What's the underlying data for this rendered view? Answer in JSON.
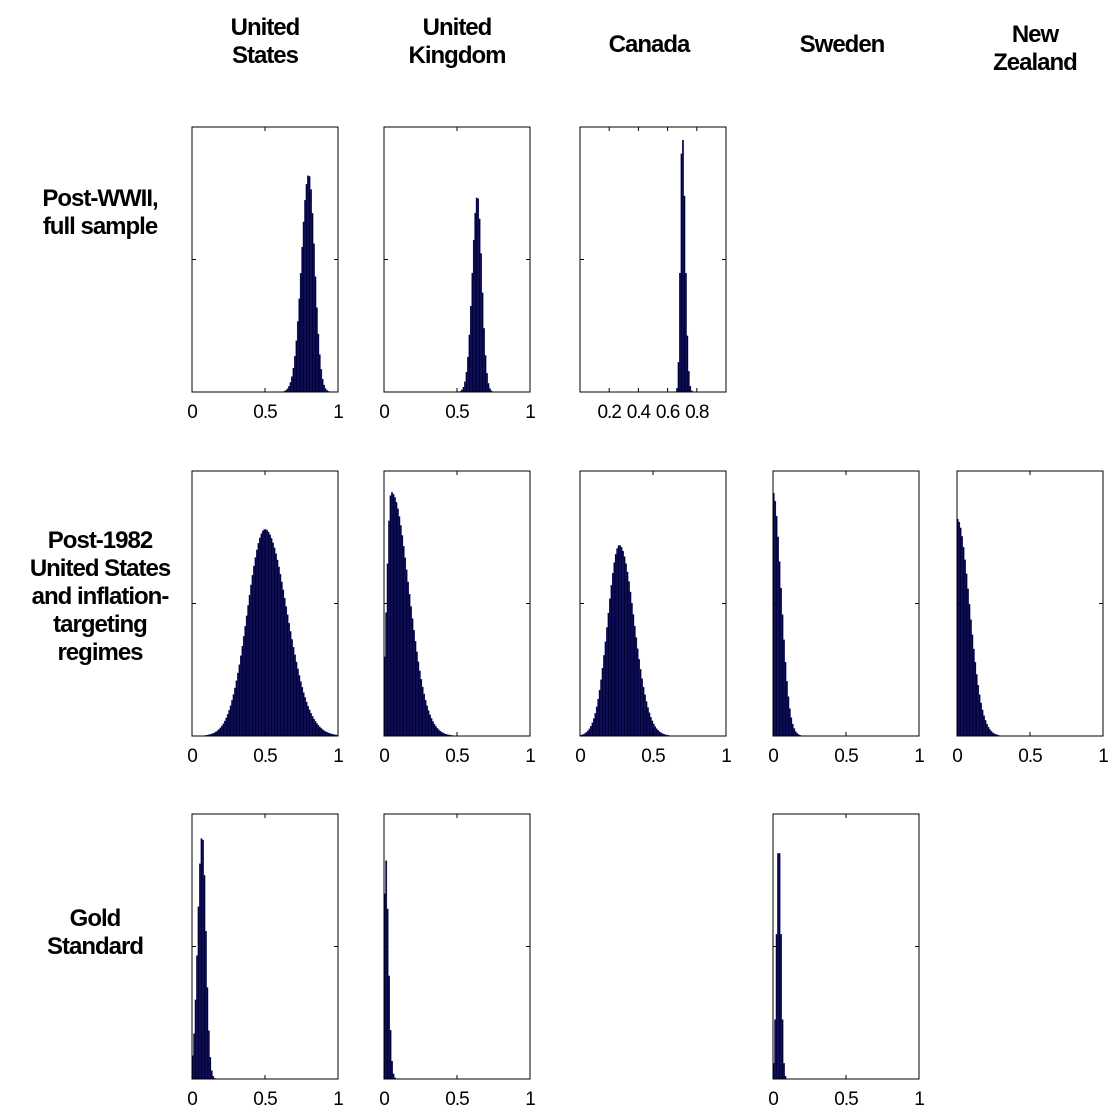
{
  "columns": [
    {
      "id": "us",
      "lines": [
        "United",
        "States"
      ]
    },
    {
      "id": "uk",
      "lines": [
        "United",
        "Kingdom"
      ]
    },
    {
      "id": "ca",
      "lines": [
        "Canada"
      ]
    },
    {
      "id": "se",
      "lines": [
        "Sweden"
      ]
    },
    {
      "id": "nz",
      "lines": [
        "New",
        "Zealand"
      ]
    }
  ],
  "rows": [
    {
      "id": "postwwii",
      "lines": [
        "Post-WWII,",
        "full sample"
      ]
    },
    {
      "id": "post1982",
      "lines": [
        "Post-1982",
        "United States",
        "and inflation-",
        "targeting",
        "regimes"
      ]
    },
    {
      "id": "gold",
      "lines": [
        "Gold",
        "Standard"
      ]
    }
  ],
  "colors": {
    "bar_fill": "#000033",
    "bar_edge": "#1a1a80",
    "axis": "#000000"
  },
  "chart_data": [
    {
      "type": "histogram",
      "row": "postwwii",
      "column": "us",
      "xlim": [
        0,
        1
      ],
      "xticks": [
        0,
        0.5,
        1
      ],
      "xtick_labels": [
        "0",
        "0.5",
        "1"
      ],
      "peak": 0.8,
      "spread_left": 0.05,
      "spread_right": 0.04,
      "peak_height": 0.82
    },
    {
      "type": "histogram",
      "row": "postwwii",
      "column": "uk",
      "xlim": [
        0,
        1
      ],
      "xticks": [
        0,
        0.5,
        1
      ],
      "xtick_labels": [
        "0",
        "0.5",
        "1"
      ],
      "peak": 0.64,
      "spread_left": 0.035,
      "spread_right": 0.03,
      "peak_height": 0.74
    },
    {
      "type": "histogram",
      "row": "postwwii",
      "column": "ca",
      "xlim": [
        0,
        1
      ],
      "xticks": [
        0.2,
        0.4,
        0.6,
        0.8
      ],
      "xtick_labels": [
        "0.2",
        "0.4",
        "0.6",
        "0.8"
      ],
      "peak": 0.7,
      "spread_left": 0.012,
      "spread_right": 0.02,
      "peak_height": 0.98
    },
    {
      "type": "histogram",
      "row": "post1982",
      "column": "us",
      "xlim": [
        0,
        1
      ],
      "xticks": [
        0,
        0.5,
        1
      ],
      "xtick_labels": [
        "0",
        "0.5",
        "1"
      ],
      "peak": 0.5,
      "spread_left": 0.12,
      "spread_right": 0.15,
      "peak_height": 0.78
    },
    {
      "type": "histogram",
      "row": "post1982",
      "column": "uk",
      "xlim": [
        0,
        1
      ],
      "xticks": [
        0,
        0.5,
        1
      ],
      "xtick_labels": [
        "0",
        "0.5",
        "1"
      ],
      "peak": 0.05,
      "spread_left": 0.03,
      "spread_right": 0.12,
      "peak_height": 0.92
    },
    {
      "type": "histogram",
      "row": "post1982",
      "column": "ca",
      "xlim": [
        0,
        1
      ],
      "xticks": [
        0,
        0.5,
        1
      ],
      "xtick_labels": [
        "0",
        "0.5",
        "1"
      ],
      "peak": 0.27,
      "spread_left": 0.08,
      "spread_right": 0.1,
      "peak_height": 0.72
    },
    {
      "type": "histogram",
      "row": "post1982",
      "column": "se",
      "xlim": [
        0,
        1
      ],
      "xticks": [
        0,
        0.5,
        1
      ],
      "xtick_labels": [
        "0",
        "0.5",
        "1"
      ],
      "peak": 0.0,
      "spread_left": 0.005,
      "spread_right": 0.055,
      "peak_height": 0.92
    },
    {
      "type": "histogram",
      "row": "post1982",
      "column": "nz",
      "xlim": [
        0,
        1
      ],
      "xticks": [
        0,
        0.5,
        1
      ],
      "xtick_labels": [
        "0",
        "0.5",
        "1"
      ],
      "peak": 0.0,
      "spread_left": 0.005,
      "spread_right": 0.085,
      "peak_height": 0.82
    },
    {
      "type": "histogram",
      "row": "gold",
      "column": "us",
      "xlim": [
        0,
        1
      ],
      "xticks": [
        0,
        0.5,
        1
      ],
      "xtick_labels": [
        "0",
        "0.5",
        "1"
      ],
      "peak": 0.07,
      "spread_left": 0.03,
      "spread_right": 0.025,
      "peak_height": 0.92
    },
    {
      "type": "histogram",
      "row": "gold",
      "column": "uk",
      "xlim": [
        0,
        1
      ],
      "xticks": [
        0,
        0.5,
        1
      ],
      "xtick_labels": [
        "0",
        "0.5",
        "1"
      ],
      "peak": 0.01,
      "spread_left": 0.008,
      "spread_right": 0.02,
      "peak_height": 0.85
    },
    {
      "type": "histogram",
      "row": "gold",
      "column": "se",
      "xlim": [
        0,
        1
      ],
      "xticks": [
        0,
        0.5,
        1
      ],
      "xtick_labels": [
        "0",
        "0.5",
        "1"
      ],
      "peak": 0.04,
      "spread_left": 0.015,
      "spread_right": 0.015,
      "peak_height": 0.9
    }
  ]
}
